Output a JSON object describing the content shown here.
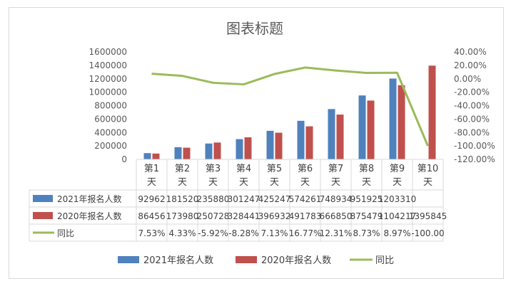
{
  "chart_data": {
    "type": "bar",
    "title": "图表标题",
    "categories": [
      [
        "第1",
        "天"
      ],
      [
        "第2",
        "天"
      ],
      [
        "第3",
        "天"
      ],
      [
        "第4",
        "天"
      ],
      [
        "第5",
        "天"
      ],
      [
        "第6",
        "天"
      ],
      [
        "第7",
        "天"
      ],
      [
        "第8",
        "天"
      ],
      [
        "第9",
        "天"
      ],
      [
        "第10",
        "天"
      ]
    ],
    "series": [
      {
        "name": "2021年报名人数",
        "type": "bar",
        "color": "#4f81bd",
        "values": [
          92962,
          181520,
          235880,
          301247,
          425247,
          574261,
          748934,
          951925,
          1203310,
          null
        ],
        "labels": [
          "92962",
          "181520",
          "235880",
          "301247",
          "425247",
          "574261",
          "748934",
          "951925",
          "1203310",
          ""
        ]
      },
      {
        "name": "2020年报名人数",
        "type": "bar",
        "color": "#c0504d",
        "values": [
          86456,
          173980,
          250728,
          328441,
          396932,
          491783,
          666850,
          875479,
          1104217,
          1395845
        ],
        "labels": [
          "86456",
          "173980",
          "250728",
          "328441",
          "396932",
          "491783",
          "666850",
          "875479",
          "1104217",
          "1395845"
        ]
      },
      {
        "name": "同比",
        "type": "line",
        "color": "#9bbb59",
        "axis": "right",
        "values": [
          7.53,
          4.33,
          -5.92,
          -8.28,
          7.13,
          16.77,
          12.31,
          8.73,
          8.97,
          -100.0
        ],
        "labels": [
          "7.53%",
          "4.33%",
          "-5.92%",
          "-8.28%",
          "7.13%",
          "16.77%",
          "12.31%",
          "8.73%",
          "8.97%",
          "-100.00"
        ]
      }
    ],
    "y_left": {
      "min": 0,
      "max": 1600000,
      "ticks": [
        "0",
        "200000",
        "400000",
        "600000",
        "800000",
        "1000000",
        "1200000",
        "1400000",
        "1600000"
      ]
    },
    "y_right": {
      "min": -120,
      "max": 40,
      "ticks": [
        "-120.00%",
        "-100.00%",
        "-80.00%",
        "-60.00%",
        "-40.00%",
        "-20.00%",
        "0.00%",
        "20.00%",
        "40.00%"
      ]
    },
    "grid": false,
    "legend_position": "bottom",
    "data_table": true
  }
}
